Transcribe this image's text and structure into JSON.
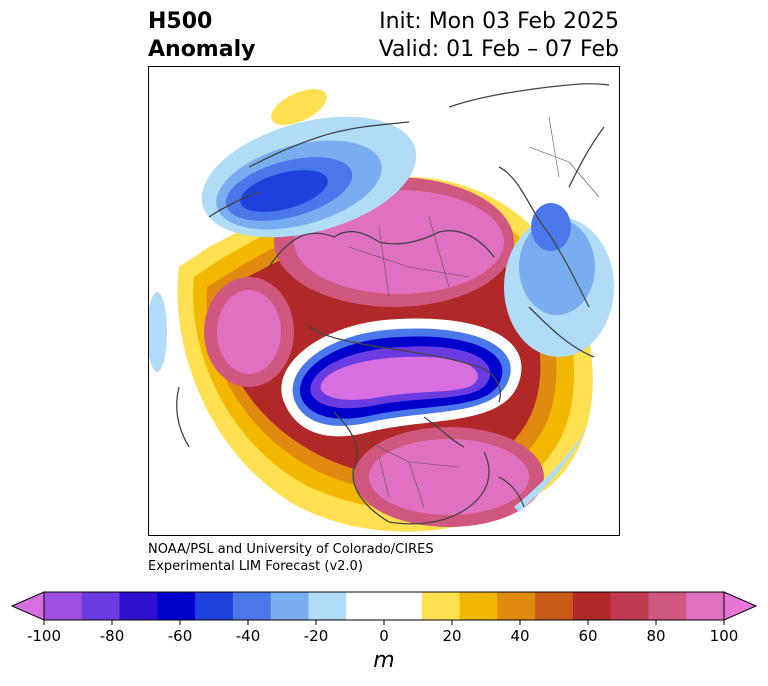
{
  "header": {
    "title_line1": "H500",
    "title_line2": "Anomaly",
    "init_line": "Init: Mon 03 Feb 2025",
    "valid_line": "Valid: 01 Feb – 07 Feb"
  },
  "credit": {
    "line1": "NOAA/PSL and University of Colorado/CIRES",
    "line2": "Experimental LIM Forecast (v2.0)"
  },
  "colorbar": {
    "unit": "m",
    "tick_labels": [
      "-100",
      "-80",
      "-60",
      "-40",
      "-20",
      "0",
      "20",
      "40",
      "60",
      "80",
      "100"
    ],
    "under_color": "#d86fe0",
    "over_color": "#e876d8",
    "bins": [
      "#a050e0",
      "#6a3be0",
      "#3010d0",
      "#0000cc",
      "#2040dd",
      "#4a78ea",
      "#78aef0",
      "#b0dcf8",
      "#ffffff",
      "#ffffff",
      "#ffe050",
      "#f2b800",
      "#e08a10",
      "#c85a18",
      "#b02828",
      "#c03a50",
      "#d05880",
      "#e070c0"
    ]
  },
  "map": {
    "projection": "north polar stereographic",
    "field": "500 hPa geopotential height anomaly"
  }
}
